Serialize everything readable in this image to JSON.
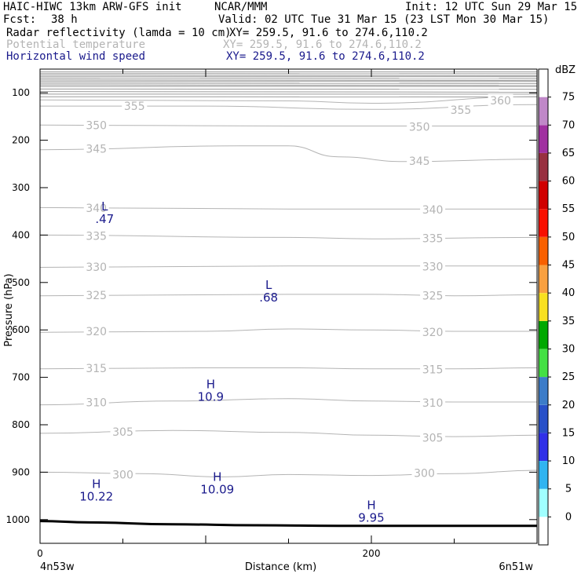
{
  "header": {
    "model": "HAIC-HIWC 13km ARW-GFS init",
    "org": "NCAR/MMM",
    "init": "Init: 12 UTC Sun 29 Mar 15",
    "fcst_label": "Fcst:",
    "fcst_value": "38 h",
    "valid": "Valid: 02 UTC Tue 31 Mar 15 (23 LST Mon 30 Mar 15)",
    "fields": [
      {
        "name": "Radar reflectivity (lamda = 10 cm)",
        "xy": "XY= 259.5, 91.6 to 274.6,110.2",
        "color": "#000000"
      },
      {
        "name": "Potential temperature",
        "xy": "XY= 259.5, 91.6 to 274.6,110.2",
        "color": "#b4b4b4"
      },
      {
        "name": "Horizontal wind speed",
        "xy": "XY= 259.5, 91.6 to 274.6,110.2",
        "color": "#1a1a8c"
      }
    ]
  },
  "chart_data": {
    "type": "cross-section",
    "xlabel": "Distance (km)",
    "ylabel": "Pressure (hPa)",
    "xlim": [
      0,
      300
    ],
    "ylim": [
      1050,
      50
    ],
    "x_ticks": [
      0,
      200
    ],
    "y_ticks": [
      100,
      200,
      300,
      400,
      500,
      600,
      700,
      800,
      900,
      1000
    ],
    "x_end_labels": {
      "left": "4n53w",
      "right": "6n51w"
    },
    "theta_contours": [
      {
        "value": 300,
        "points": [
          [
            0,
            900
          ],
          [
            60,
            903
          ],
          [
            110,
            910
          ],
          [
            150,
            905
          ],
          [
            200,
            907
          ],
          [
            250,
            903
          ],
          [
            300,
            896
          ]
        ],
        "labels": [
          [
            50,
            905
          ],
          [
            232,
            902
          ]
        ]
      },
      {
        "value": 305,
        "points": [
          [
            0,
            818
          ],
          [
            80,
            812
          ],
          [
            150,
            816
          ],
          [
            200,
            822
          ],
          [
            250,
            825
          ],
          [
            300,
            822
          ]
        ],
        "labels": [
          [
            50,
            815
          ],
          [
            237,
            827
          ]
        ]
      },
      {
        "value": 310,
        "points": [
          [
            0,
            758
          ],
          [
            80,
            750
          ],
          [
            150,
            745
          ],
          [
            200,
            750
          ],
          [
            250,
            752
          ],
          [
            300,
            752
          ]
        ],
        "labels": [
          [
            34,
            753
          ],
          [
            237,
            754
          ]
        ]
      },
      {
        "value": 315,
        "points": [
          [
            0,
            682
          ],
          [
            100,
            680
          ],
          [
            150,
            680
          ],
          [
            200,
            682
          ],
          [
            250,
            682
          ],
          [
            300,
            680
          ]
        ],
        "labels": [
          [
            34,
            681
          ],
          [
            237,
            683
          ]
        ]
      },
      {
        "value": 320,
        "points": [
          [
            0,
            605
          ],
          [
            100,
            603
          ],
          [
            150,
            598
          ],
          [
            200,
            600
          ],
          [
            250,
            603
          ],
          [
            300,
            603
          ]
        ],
        "labels": [
          [
            34,
            603
          ],
          [
            237,
            605
          ]
        ]
      },
      {
        "value": 325,
        "points": [
          [
            0,
            528
          ],
          [
            150,
            525
          ],
          [
            200,
            525
          ],
          [
            250,
            528
          ],
          [
            300,
            526
          ]
        ],
        "labels": [
          [
            34,
            527
          ],
          [
            237,
            528
          ]
        ]
      },
      {
        "value": 330,
        "points": [
          [
            0,
            468
          ],
          [
            150,
            465
          ],
          [
            200,
            465
          ],
          [
            300,
            465
          ]
        ],
        "labels": [
          [
            34,
            467
          ],
          [
            237,
            466
          ]
        ]
      },
      {
        "value": 335,
        "points": [
          [
            0,
            400
          ],
          [
            150,
            405
          ],
          [
            200,
            408
          ],
          [
            300,
            405
          ]
        ],
        "labels": [
          [
            34,
            402
          ],
          [
            237,
            407
          ]
        ]
      },
      {
        "value": 340,
        "points": [
          [
            0,
            342
          ],
          [
            150,
            345
          ],
          [
            200,
            345
          ],
          [
            300,
            345
          ]
        ],
        "labels": [
          [
            34,
            343
          ],
          [
            237,
            346
          ]
        ]
      },
      {
        "value": 345,
        "points": [
          [
            0,
            220
          ],
          [
            120,
            212
          ],
          [
            150,
            212
          ],
          [
            180,
            235
          ],
          [
            220,
            245
          ],
          [
            300,
            240
          ]
        ],
        "labels": [
          [
            34,
            218
          ],
          [
            229,
            244
          ]
        ]
      },
      {
        "value": 350,
        "points": [
          [
            0,
            168
          ],
          [
            150,
            170
          ],
          [
            200,
            170
          ],
          [
            300,
            170
          ]
        ],
        "labels": [
          [
            34,
            168
          ],
          [
            229,
            172
          ]
        ]
      },
      {
        "value": 355,
        "points": [
          [
            0,
            128
          ],
          [
            100,
            128
          ],
          [
            200,
            135
          ],
          [
            300,
            125
          ]
        ],
        "labels": [
          [
            57,
            128
          ],
          [
            254,
            136
          ]
        ]
      },
      {
        "value": 360,
        "points": [
          [
            0,
            115
          ],
          [
            150,
            117
          ],
          [
            200,
            122
          ],
          [
            300,
            108
          ]
        ],
        "labels": [
          [
            278,
            116
          ]
        ]
      }
    ],
    "wind_extrema": [
      {
        "type": "L",
        "value": ".47",
        "x": 39,
        "p": 355
      },
      {
        "type": "L",
        "value": ".68",
        "x": 138,
        "p": 520
      },
      {
        "type": "H",
        "value": "10.9",
        "x": 103,
        "p": 730
      },
      {
        "type": "H",
        "value": "10.22",
        "x": 34,
        "p": 940
      },
      {
        "type": "H",
        "value": "10.09",
        "x": 107,
        "p": 925
      },
      {
        "type": "H",
        "value": "9.95",
        "x": 200,
        "p": 985
      }
    ],
    "terrain": [
      [
        0,
        1003
      ],
      [
        30,
        1006
      ],
      [
        80,
        1010
      ],
      [
        130,
        1012
      ],
      [
        180,
        1013
      ],
      [
        300,
        1013
      ]
    ],
    "colorbar": {
      "unit": "dBZ",
      "labels": [
        "0",
        "5",
        "10",
        "15",
        "20",
        "25",
        "30",
        "35",
        "40",
        "45",
        "50",
        "55",
        "60",
        "65",
        "70",
        "75"
      ],
      "colors": [
        "#ffffff",
        "#a0ffff",
        "#30b4f0",
        "#3030e8",
        "#2850c8",
        "#3c7cc8",
        "#44e044",
        "#00a800",
        "#f8e020",
        "#f8a040",
        "#f86000",
        "#f81000",
        "#d00000",
        "#983040",
        "#a030a0",
        "#c088c8",
        "#ffffff"
      ]
    }
  }
}
